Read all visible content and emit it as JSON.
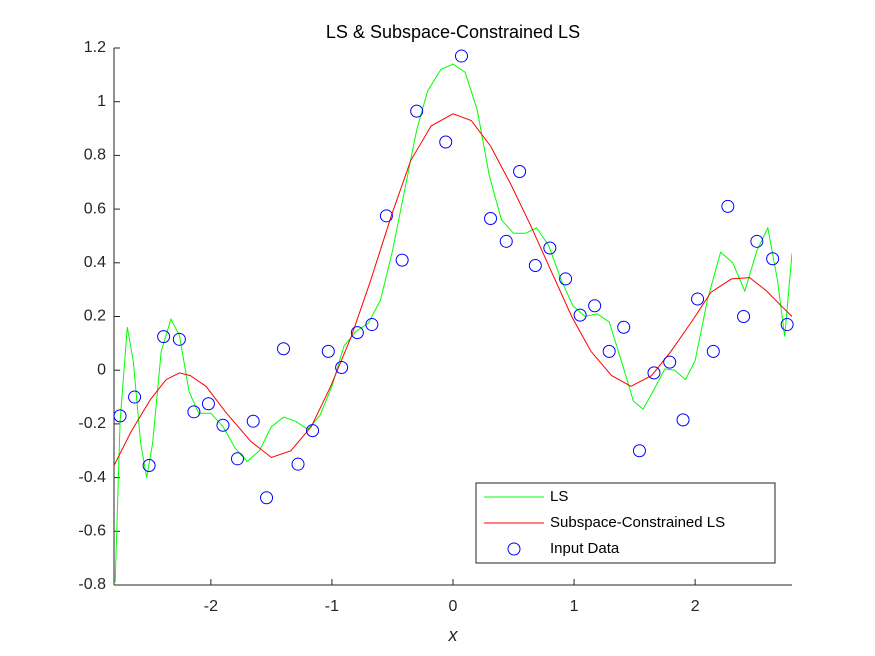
{
  "chart_data": {
    "type": "line",
    "title": "LS & Subspace-Constrained LS",
    "x_label": "x",
    "xlim": [
      -2.8,
      2.8
    ],
    "xticks": [
      -2,
      -1,
      0,
      1,
      2
    ],
    "ylim": [
      -0.8,
      1.2
    ],
    "yticks": [
      -0.8,
      -0.6,
      -0.4,
      -0.2,
      0,
      0.2,
      0.4,
      0.6,
      0.8,
      1,
      1.2
    ],
    "grid": false,
    "legend": "southeast",
    "series": [
      {
        "name": "LS",
        "color": "#00ff00",
        "mode": "lines",
        "x": [
          -2.79,
          -2.75,
          -2.69,
          -2.64,
          -2.58,
          -2.53,
          -2.48,
          -2.41,
          -2.33,
          -2.26,
          -2.18,
          -2.1,
          -2.0,
          -1.9,
          -1.8,
          -1.7,
          -1.6,
          -1.5,
          -1.4,
          -1.3,
          -1.2,
          -1.1,
          -1.0,
          -0.9,
          -0.8,
          -0.7,
          -0.6,
          -0.5,
          -0.4,
          -0.3,
          -0.21,
          -0.1,
          0,
          0.1,
          0.2,
          0.3,
          0.4,
          0.5,
          0.6,
          0.69,
          0.79,
          0.89,
          0.99,
          1.09,
          1.19,
          1.29,
          1.39,
          1.49,
          1.57,
          1.65,
          1.75,
          1.83,
          1.92,
          2.0,
          2.1,
          2.21,
          2.31,
          2.41,
          2.51,
          2.6,
          2.68,
          2.74,
          2.8
        ],
        "values": [
          -0.79,
          -0.19,
          0.16,
          0.03,
          -0.27,
          -0.4,
          -0.27,
          0.07,
          0.19,
          0.13,
          -0.08,
          -0.16,
          -0.16,
          -0.21,
          -0.29,
          -0.34,
          -0.3,
          -0.21,
          -0.175,
          -0.19,
          -0.22,
          -0.17,
          -0.06,
          0.09,
          0.145,
          0.175,
          0.26,
          0.445,
          0.67,
          0.895,
          1.04,
          1.12,
          1.14,
          1.11,
          0.97,
          0.725,
          0.56,
          0.51,
          0.51,
          0.53,
          0.465,
          0.34,
          0.24,
          0.2,
          0.21,
          0.18,
          0.035,
          -0.115,
          -0.145,
          -0.08,
          0.005,
          0.0,
          -0.035,
          0.035,
          0.26,
          0.44,
          0.4,
          0.295,
          0.445,
          0.53,
          0.335,
          0.125,
          0.435
        ]
      },
      {
        "name": "Subspace-Constrained LS",
        "color": "#ff0000",
        "mode": "lines",
        "x": [
          -2.8,
          -2.66,
          -2.5,
          -2.37,
          -2.26,
          -2.17,
          -2.04,
          -1.88,
          -1.67,
          -1.5,
          -1.34,
          -1.17,
          -1.01,
          -0.84,
          -0.68,
          -0.51,
          -0.35,
          -0.18,
          0,
          0.15,
          0.31,
          0.48,
          0.64,
          0.81,
          0.98,
          1.14,
          1.31,
          1.47,
          1.64,
          1.8,
          1.97,
          2.13,
          2.3,
          2.45,
          2.59,
          2.71,
          2.8
        ],
        "values": [
          -0.355,
          -0.23,
          -0.11,
          -0.035,
          -0.01,
          -0.02,
          -0.06,
          -0.155,
          -0.265,
          -0.325,
          -0.3,
          -0.21,
          -0.06,
          0.125,
          0.335,
          0.575,
          0.78,
          0.91,
          0.955,
          0.93,
          0.835,
          0.69,
          0.54,
          0.37,
          0.2,
          0.07,
          -0.02,
          -0.06,
          -0.02,
          0.07,
          0.18,
          0.29,
          0.34,
          0.345,
          0.295,
          0.24,
          0.2
        ]
      },
      {
        "name": "Input Data",
        "color": "#0000ff",
        "mode": "markers",
        "x": [
          -2.75,
          -2.63,
          -2.51,
          -2.39,
          -2.26,
          -2.14,
          -2.02,
          -1.9,
          -1.78,
          -1.65,
          -1.54,
          -1.4,
          -1.28,
          -1.16,
          -1.03,
          -0.92,
          -0.79,
          -0.67,
          -0.55,
          -0.42,
          -0.3,
          -0.06,
          0.07,
          0.31,
          0.44,
          0.55,
          0.68,
          0.8,
          0.93,
          1.05,
          1.17,
          1.29,
          1.41,
          1.54,
          1.66,
          1.79,
          1.9,
          2.02,
          2.15,
          2.27,
          2.4,
          2.51,
          2.64,
          2.76
        ],
        "values": [
          -0.17,
          -0.1,
          -0.355,
          0.125,
          0.115,
          -0.155,
          -0.125,
          -0.205,
          -0.33,
          -0.19,
          -0.475,
          0.08,
          -0.35,
          -0.225,
          0.07,
          0.01,
          0.14,
          0.17,
          0.575,
          0.41,
          0.965,
          0.85,
          1.17,
          0.565,
          0.48,
          0.74,
          0.39,
          0.455,
          0.34,
          0.205,
          0.24,
          0.07,
          0.16,
          -0.3,
          -0.01,
          0.03,
          -0.185,
          0.265,
          0.07,
          0.61,
          0.2,
          0.48,
          0.415,
          0.17
        ]
      }
    ]
  }
}
